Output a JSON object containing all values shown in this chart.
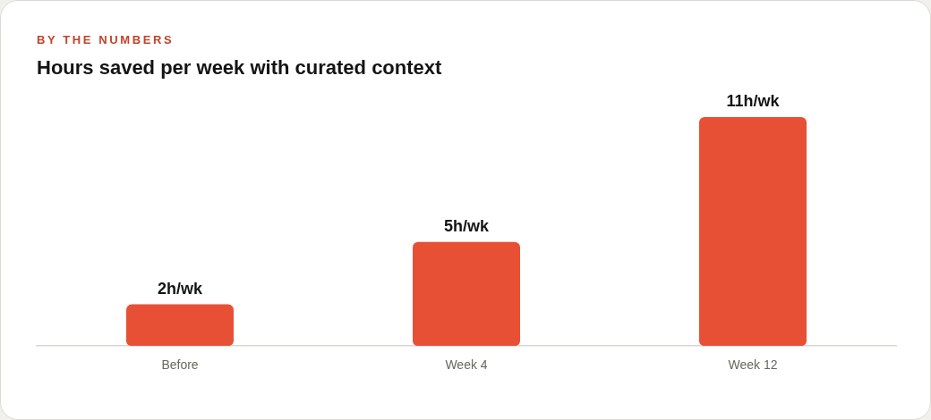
{
  "chart_data": {
    "type": "bar",
    "subtitle": "BY THE NUMBERS",
    "title": "Hours saved per week with curated context",
    "categories": [
      "Before",
      "Week 4",
      "Week 12"
    ],
    "values": [
      2,
      5,
      11
    ],
    "color": "#e85035",
    "value_labels": [
      "2h/wk",
      "5h/wk",
      "11h/wk"
    ],
    "tick_labels": "x"
  }
}
